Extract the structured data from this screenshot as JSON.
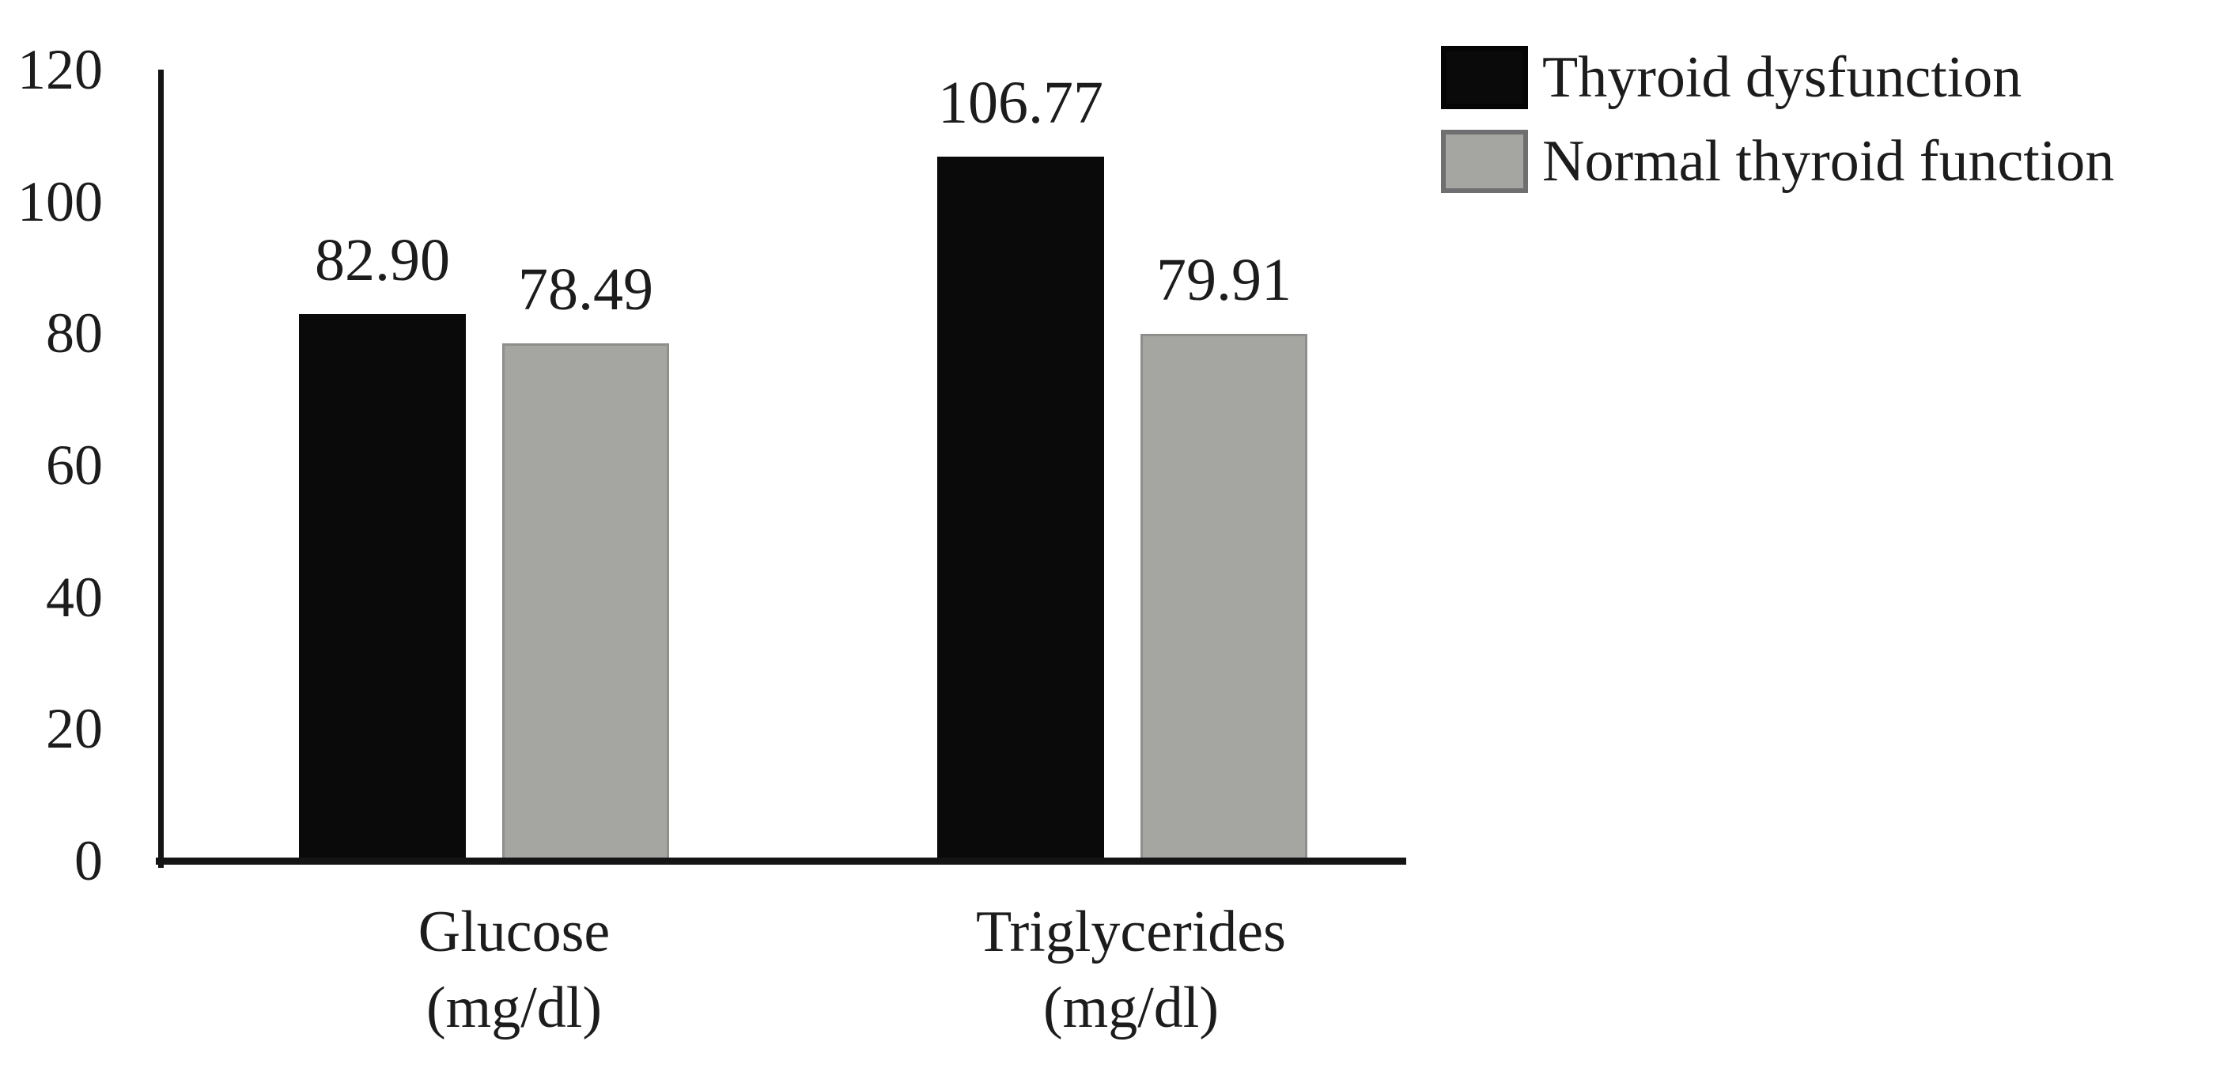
{
  "chart_data": {
    "type": "bar",
    "categories": [
      {
        "label": "Glucose",
        "unit": "(mg/dl)"
      },
      {
        "label": "Triglycerides",
        "unit": "(mg/dl)"
      }
    ],
    "series": [
      {
        "name": "Thyroid dysfunction",
        "values": [
          82.9,
          106.77
        ],
        "labels": [
          "82.90",
          "106.77"
        ],
        "color": "#0a0a0a"
      },
      {
        "name": "Normal thyroid function",
        "values": [
          78.49,
          79.91
        ],
        "labels": [
          "78.49",
          "79.91"
        ],
        "color": "#a5a5a1"
      }
    ],
    "ylim": [
      0,
      120
    ],
    "yticks": [
      0,
      20,
      40,
      60,
      80,
      100,
      120
    ],
    "grid": false,
    "legend_position": "top-right",
    "axis_color": "#141414",
    "text_color": "#1c1c1c",
    "background": "#ffffff"
  }
}
